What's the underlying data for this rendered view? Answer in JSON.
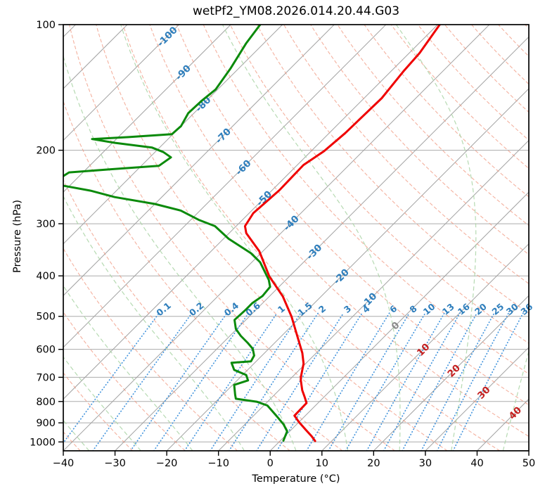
{
  "title": "wetPf2_YM08.2026.014.20.44.G03",
  "axes": {
    "x_label": "Temperature (°C)",
    "y_label": "Pressure (hPa)",
    "x_tick_labels": [
      "−40",
      "−30",
      "−20",
      "−10",
      "0",
      "10",
      "20",
      "30",
      "40",
      "50"
    ],
    "x_tick_values": [
      -40,
      -30,
      -20,
      -10,
      0,
      10,
      20,
      30,
      40,
      50
    ],
    "y_tick_labels": [
      "100",
      "200",
      "300",
      "400",
      "500",
      "600",
      "700",
      "800",
      "900",
      "1000"
    ],
    "y_tick_values": [
      100,
      200,
      300,
      400,
      500,
      600,
      700,
      800,
      900,
      1000
    ],
    "x_range_c": [
      -40,
      50
    ],
    "pressure_range_hpa": [
      100,
      1050
    ]
  },
  "colors": {
    "temperature_line": "#ef0000",
    "dewpoint_line": "#0b8a0b",
    "isotherm": "#a2a2a2",
    "pressure_gridline": "#ababab",
    "dry_adiabat": "#f0977f",
    "moist_adiabat": "#aed6aa",
    "mixing_ratio": "#4495dd",
    "label_negative": "#2e7ebc",
    "label_zero": "#8a8a8a",
    "label_positive": "#c42020",
    "frame": "#000000"
  },
  "background": {
    "isotherm_step_c": 10,
    "isotherm_min_c": -120,
    "isotherm_max_c": 50,
    "isotherm_labels": [
      -100,
      -90,
      -80,
      -70,
      -60,
      -50,
      -40,
      -30,
      -20,
      -10,
      0,
      10,
      20,
      30,
      40
    ],
    "dry_adiabat_theta_min_c": -50,
    "dry_adiabat_theta_max_c": 190,
    "dry_adiabat_step_c": 10,
    "moist_adiabat_start_temps_c": [
      -45,
      -35,
      -25,
      -15,
      -5,
      5,
      15,
      25,
      35,
      45,
      55
    ],
    "mixing_ratio_lines_g_kg": [
      0.1,
      0.2,
      0.4,
      0.6,
      1,
      1.5,
      2,
      3,
      4,
      6,
      8,
      10,
      13,
      16,
      20,
      25,
      30,
      36
    ],
    "mixing_ratio_labels": [
      "0.1",
      "0.2",
      "0.4",
      "0.6",
      "1",
      "1.5",
      "2",
      "3",
      "4",
      "6",
      "8",
      "10",
      "13",
      "16",
      "20",
      "25",
      "30",
      "36"
    ]
  },
  "chart_data": {
    "type": "line",
    "variant": "skew-t-log-p-sounding",
    "title": "wetPf2_YM08.2026.014.20.44.G03",
    "xlabel": "Temperature (°C)",
    "ylabel": "Pressure (hPa)",
    "x_range_c": [
      -40,
      50
    ],
    "pressure_range_hpa": [
      100,
      1050
    ],
    "y_scale": "log",
    "skew": "45deg",
    "legend": "none",
    "grid": "on",
    "series": [
      {
        "name": "temperature",
        "units": "pressure_hPa_vs_temp_C",
        "points": [
          [
            100,
            -49.6
          ],
          [
            117,
            -48.0
          ],
          [
            129,
            -47.6
          ],
          [
            150,
            -46.6
          ],
          [
            182,
            -46.9
          ],
          [
            201,
            -47.5
          ],
          [
            217,
            -48.8
          ],
          [
            249,
            -48.6
          ],
          [
            283,
            -49.2
          ],
          [
            304,
            -48.3
          ],
          [
            316,
            -46.7
          ],
          [
            349,
            -40.7
          ],
          [
            401,
            -33.9
          ],
          [
            448,
            -27.4
          ],
          [
            501,
            -21.8
          ],
          [
            540,
            -18.4
          ],
          [
            612,
            -12.7
          ],
          [
            649,
            -10.4
          ],
          [
            697,
            -8.4
          ],
          [
            710,
            -7.8
          ],
          [
            752,
            -5.5
          ],
          [
            781,
            -3.7
          ],
          [
            807,
            -2.2
          ],
          [
            865,
            -2.1
          ],
          [
            896,
            0.0
          ],
          [
            932,
            2.6
          ],
          [
            969,
            5.2
          ],
          [
            995,
            6.8
          ]
        ]
      },
      {
        "name": "dewpoint",
        "units": "pressure_hPa_vs_temp_C",
        "points": [
          [
            100,
            -84.3
          ],
          [
            111,
            -83.4
          ],
          [
            127,
            -81.6
          ],
          [
            143,
            -80.4
          ],
          [
            152,
            -80.9
          ],
          [
            163,
            -81.1
          ],
          [
            175,
            -80.0
          ],
          [
            183,
            -80.2
          ],
          [
            186,
            -88.0
          ],
          [
            188,
            -94.7
          ],
          [
            192,
            -89.5
          ],
          [
            197,
            -81.5
          ],
          [
            202,
            -78.4
          ],
          [
            208,
            -75.9
          ],
          [
            218,
            -76.6
          ],
          [
            222,
            -85.0
          ],
          [
            226,
            -92.7
          ],
          [
            232,
            -93.2
          ],
          [
            243,
            -91.4
          ],
          [
            250,
            -85.0
          ],
          [
            259,
            -79.1
          ],
          [
            269,
            -70.0
          ],
          [
            279,
            -63.7
          ],
          [
            294,
            -58.3
          ],
          [
            304,
            -54.1
          ],
          [
            326,
            -49.0
          ],
          [
            353,
            -41.9
          ],
          [
            371,
            -38.4
          ],
          [
            409,
            -33.3
          ],
          [
            425,
            -31.7
          ],
          [
            447,
            -31.4
          ],
          [
            465,
            -32.0
          ],
          [
            482,
            -32.0
          ],
          [
            510,
            -32.2
          ],
          [
            536,
            -30.2
          ],
          [
            557,
            -27.9
          ],
          [
            579,
            -25.2
          ],
          [
            598,
            -23.1
          ],
          [
            621,
            -21.5
          ],
          [
            641,
            -21.0
          ],
          [
            646,
            -24.5
          ],
          [
            672,
            -22.6
          ],
          [
            691,
            -19.3
          ],
          [
            712,
            -17.9
          ],
          [
            730,
            -19.7
          ],
          [
            771,
            -17.6
          ],
          [
            788,
            -16.7
          ],
          [
            801,
            -12.1
          ],
          [
            818,
            -9.3
          ],
          [
            864,
            -5.7
          ],
          [
            908,
            -2.5
          ],
          [
            943,
            -0.5
          ],
          [
            993,
            0.6
          ]
        ]
      }
    ]
  }
}
